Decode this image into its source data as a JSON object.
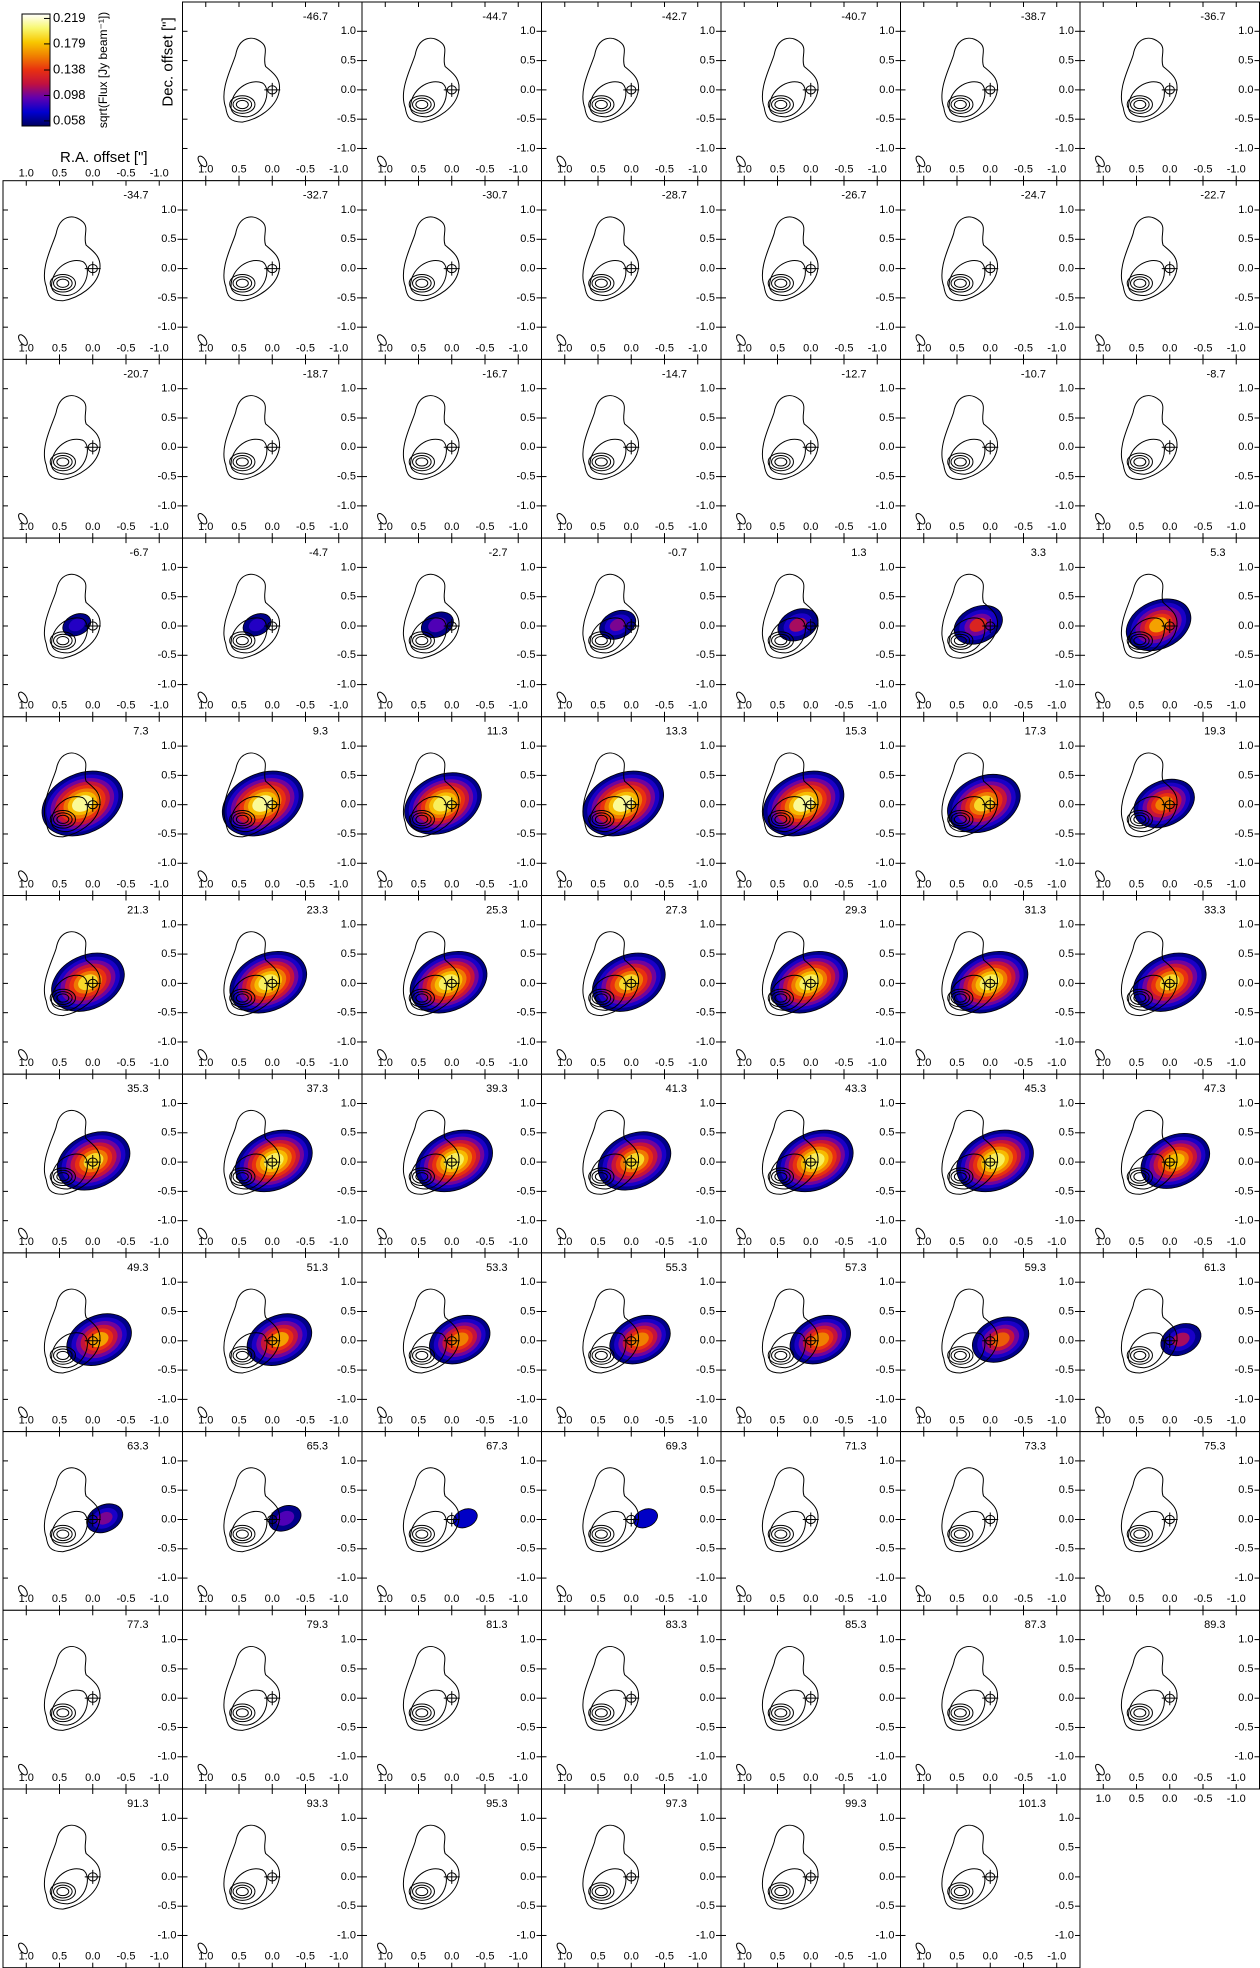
{
  "chart_data": {
    "type": "channel-map",
    "channels": [
      -46.7,
      -44.7,
      -42.7,
      -40.7,
      -38.7,
      -36.7,
      -34.7,
      -32.7,
      -30.7,
      -28.7,
      -26.7,
      -24.7,
      -22.7,
      -20.7,
      -18.7,
      -16.7,
      -14.7,
      -12.7,
      -10.7,
      -8.7,
      -6.7,
      -4.7,
      -2.7,
      -0.7,
      1.3,
      3.3,
      5.3,
      7.3,
      9.3,
      11.3,
      13.3,
      15.3,
      17.3,
      19.3,
      21.3,
      23.3,
      25.3,
      27.3,
      29.3,
      31.3,
      33.3,
      35.3,
      37.3,
      39.3,
      41.3,
      43.3,
      45.3,
      47.3,
      49.3,
      51.3,
      53.3,
      55.3,
      57.3,
      59.3,
      61.3,
      63.3,
      65.3,
      67.3,
      69.3,
      71.3,
      73.3,
      75.3,
      77.3,
      79.3,
      81.3,
      83.3,
      85.3,
      87.3,
      89.3,
      91.3,
      93.3,
      95.3,
      97.3,
      99.3,
      101.3
    ],
    "peaks": [
      0.05,
      0.05,
      0.05,
      0.05,
      0.05,
      0.05,
      0.05,
      0.05,
      0.05,
      0.05,
      0.05,
      0.05,
      0.05,
      0.05,
      0.05,
      0.05,
      0.05,
      0.05,
      0.05,
      0.05,
      0.08,
      0.08,
      0.09,
      0.1,
      0.11,
      0.13,
      0.17,
      0.21,
      0.21,
      0.2,
      0.21,
      0.21,
      0.19,
      0.16,
      0.19,
      0.2,
      0.2,
      0.19,
      0.2,
      0.2,
      0.19,
      0.19,
      0.2,
      0.2,
      0.19,
      0.2,
      0.2,
      0.18,
      0.17,
      0.17,
      0.16,
      0.16,
      0.16,
      0.15,
      0.11,
      0.1,
      0.09,
      0.07,
      0.07,
      0.05,
      0.05,
      0.05,
      0.05,
      0.05,
      0.05,
      0.05,
      0.05,
      0.05,
      0.05,
      0.05,
      0.05,
      0.05,
      0.05,
      0.05,
      0.05
    ],
    "xlabel": "R.A. offset [\"]",
    "ylabel": "Dec. offset [\"]",
    "xlim": [
      1.35,
      -1.35
    ],
    "ylim": [
      -1.55,
      1.5
    ],
    "xticks": [
      {
        "value": 1,
        "label": "1.0"
      },
      0.5,
      {
        "value": 0,
        "label": "0.0"
      },
      -0.5,
      {
        "value": -1,
        "label": "-1.0"
      }
    ],
    "yticks": [
      {
        "value": 1,
        "label": "1.0"
      },
      0.5,
      {
        "value": 0,
        "label": "0.0"
      },
      -0.5,
      {
        "value": -1,
        "label": "-1.0"
      }
    ],
    "colorbar": {
      "label": "sqrt(Flux [Jy beam⁻¹])",
      "lim": [
        0.05,
        0.226
      ],
      "ticks": [
        0.058,
        0.098,
        0.138,
        0.179,
        0.219
      ],
      "colors": [
        "#000060",
        "#0000d0",
        "#6000b0",
        "#c01040",
        "#e83010",
        "#f08000",
        "#f8c800",
        "#f8f870",
        "#ffffff"
      ]
    }
  }
}
